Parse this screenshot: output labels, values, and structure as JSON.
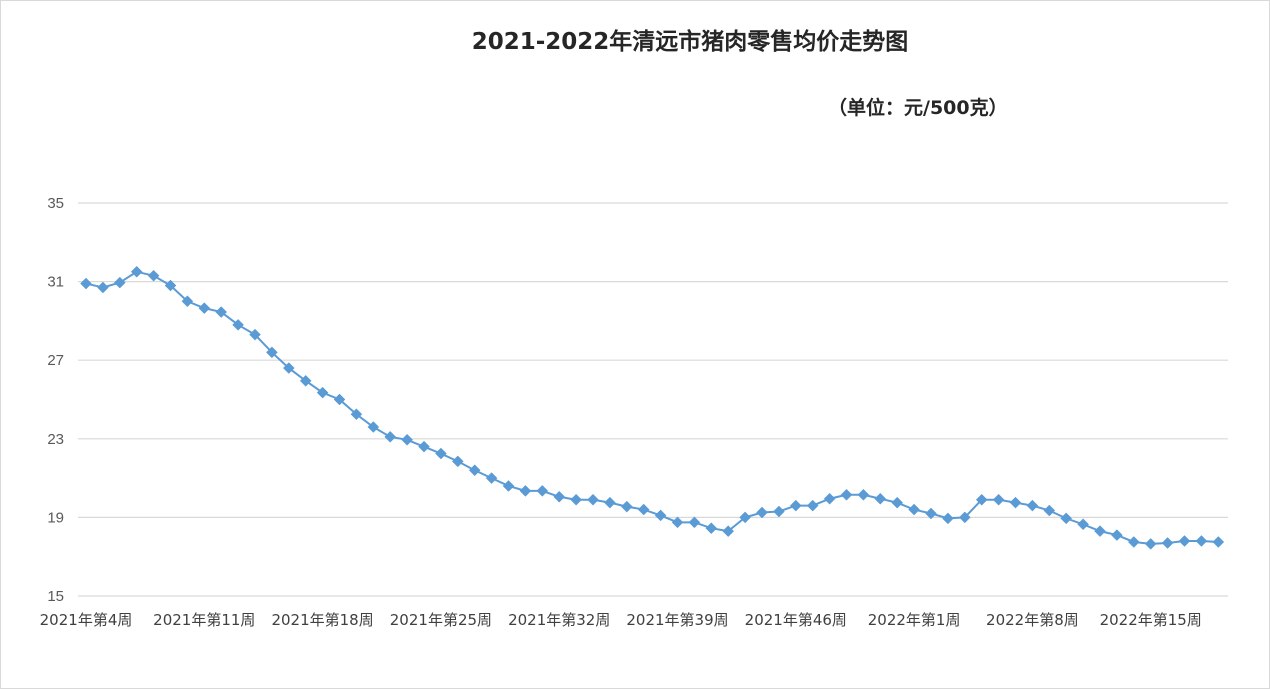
{
  "chart_data": {
    "type": "line",
    "title": "2021-2022年清远市猪肉零售均价走势图",
    "unit_note": "（单位：元/500克）",
    "xlabel": "",
    "ylabel": "",
    "ylim": [
      15,
      35
    ],
    "yticks": [
      15,
      19,
      23,
      27,
      31,
      35
    ],
    "grid": true,
    "legend": "none",
    "x_tick_labels": [
      {
        "index": 0,
        "label": "2021年第4周"
      },
      {
        "index": 7,
        "label": "2021年第11周"
      },
      {
        "index": 14,
        "label": "2021年第18周"
      },
      {
        "index": 21,
        "label": "2021年第25周"
      },
      {
        "index": 28,
        "label": "2021年第32周"
      },
      {
        "index": 35,
        "label": "2021年第39周"
      },
      {
        "index": 42,
        "label": "2021年第46周"
      },
      {
        "index": 49,
        "label": "2022年第1周"
      },
      {
        "index": 56,
        "label": "2022年第8周"
      },
      {
        "index": 63,
        "label": "2022年第15周"
      }
    ],
    "series": [
      {
        "color": "#5b9bd5",
        "values": [
          30.9,
          30.7,
          30.95,
          31.5,
          31.3,
          30.8,
          30.0,
          29.65,
          29.45,
          28.8,
          28.3,
          27.4,
          26.6,
          25.95,
          25.35,
          25.0,
          24.25,
          23.6,
          23.1,
          22.95,
          22.6,
          22.25,
          21.85,
          21.4,
          21.0,
          20.6,
          20.35,
          20.35,
          20.05,
          19.9,
          19.9,
          19.75,
          19.55,
          19.4,
          19.1,
          18.75,
          18.75,
          18.45,
          18.3,
          19.0,
          19.25,
          19.3,
          19.6,
          19.6,
          19.95,
          20.15,
          20.15,
          19.95,
          19.75,
          19.4,
          19.2,
          18.95,
          19.0,
          19.9,
          19.9,
          19.75,
          19.6,
          19.35,
          18.95,
          18.65,
          18.3,
          18.1,
          17.75,
          17.65,
          17.7,
          17.8,
          17.8,
          17.75
        ]
      }
    ]
  }
}
